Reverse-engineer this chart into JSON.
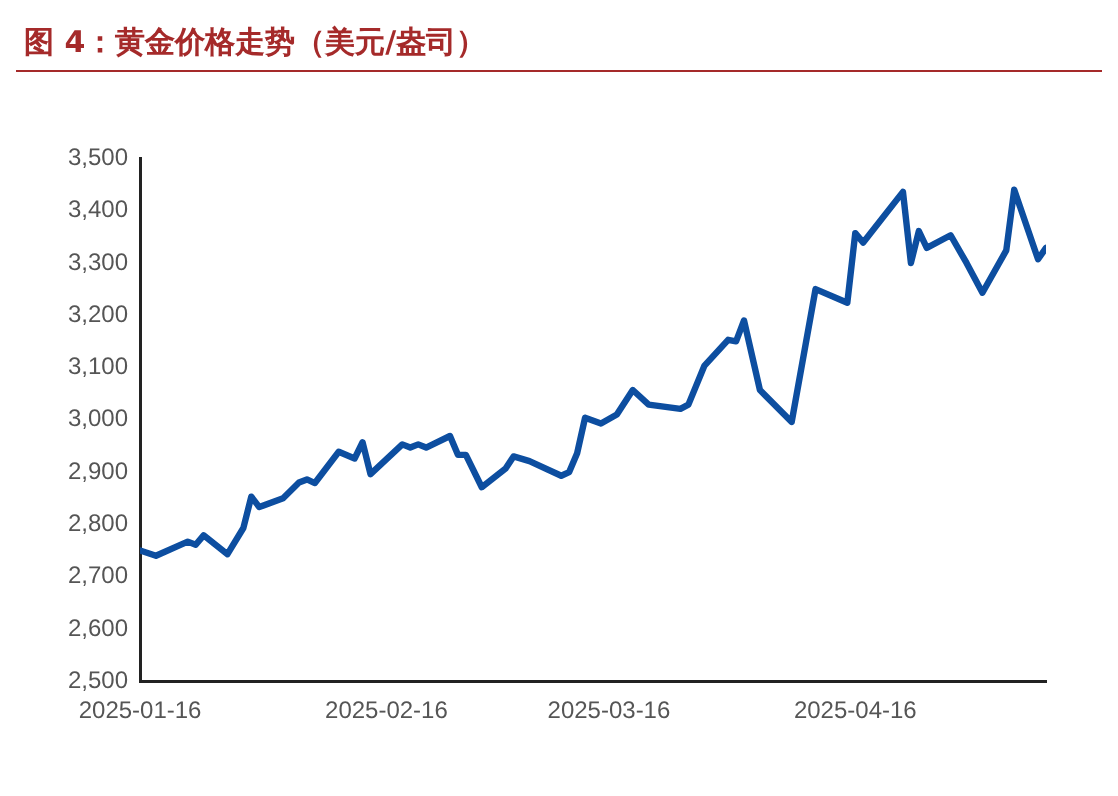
{
  "chart_data": {
    "type": "line",
    "title": "图 4：黄金价格走势（美元/盎司）",
    "x": [
      "2025-01-16",
      "2025-01-18",
      "2025-01-22",
      "2025-01-23",
      "2025-01-24",
      "2025-01-27",
      "2025-01-29",
      "2025-01-30",
      "2025-01-31",
      "2025-02-03",
      "2025-02-05",
      "2025-02-06",
      "2025-02-07",
      "2025-02-10",
      "2025-02-12",
      "2025-02-13",
      "2025-02-14",
      "2025-02-18",
      "2025-02-19",
      "2025-02-20",
      "2025-02-21",
      "2025-02-24",
      "2025-02-25",
      "2025-02-26",
      "2025-02-28",
      "2025-03-03",
      "2025-03-04",
      "2025-03-06",
      "2025-03-10",
      "2025-03-11",
      "2025-03-12",
      "2025-03-13",
      "2025-03-15",
      "2025-03-17",
      "2025-03-19",
      "2025-03-21",
      "2025-03-25",
      "2025-03-26",
      "2025-03-28",
      "2025-03-31",
      "2025-04-01",
      "2025-04-02",
      "2025-04-04",
      "2025-04-08",
      "2025-04-11",
      "2025-04-15",
      "2025-04-16",
      "2025-04-17",
      "2025-04-22",
      "2025-04-23",
      "2025-04-24",
      "2025-04-25",
      "2025-04-28",
      "2025-04-30",
      "2025-05-02",
      "2025-05-05",
      "2025-05-06",
      "2025-05-09",
      "2025-05-10"
    ],
    "series": [
      {
        "color": "#0d4ea0",
        "values": [
          2750,
          2740,
          2767,
          2761,
          2779,
          2743,
          2793,
          2853,
          2833,
          2850,
          2880,
          2886,
          2879,
          2939,
          2926,
          2957,
          2896,
          2953,
          2947,
          2953,
          2947,
          2969,
          2933,
          2933,
          2871,
          2907,
          2930,
          2921,
          2893,
          2900,
          2936,
          3004,
          2993,
          3010,
          3057,
          3029,
          3021,
          3029,
          3103,
          3153,
          3150,
          3190,
          3057,
          2996,
          3250,
          3224,
          3357,
          3339,
          3436,
          3300,
          3361,
          3329,
          3353,
          3300,
          3243,
          3324,
          3440,
          3307,
          3329
        ]
      }
    ],
    "xlim": [
      "2025-01-16",
      "2025-05-10"
    ],
    "xticks": [
      {
        "value": "2025-01-16",
        "label": "2025-01-16"
      },
      {
        "value": "2025-02-16",
        "label": "2025-02-16"
      },
      {
        "value": "2025-03-16",
        "label": "2025-03-16"
      },
      {
        "value": "2025-04-16",
        "label": "2025-04-16"
      }
    ],
    "ylim": [
      2500,
      3500
    ],
    "yticks": [
      {
        "value": 2500,
        "label": "2,500"
      },
      {
        "value": 2600,
        "label": "2,600"
      },
      {
        "value": 2700,
        "label": "2,700"
      },
      {
        "value": 2800,
        "label": "2,800"
      },
      {
        "value": 2900,
        "label": "2,900"
      },
      {
        "value": 3000,
        "label": "3,000"
      },
      {
        "value": 3100,
        "label": "3,100"
      },
      {
        "value": 3200,
        "label": "3,200"
      },
      {
        "value": 3300,
        "label": "3,300"
      },
      {
        "value": 3400,
        "label": "3,400"
      },
      {
        "value": 3500,
        "label": "3,500"
      }
    ],
    "grid": false,
    "legend": false,
    "marker": "none",
    "line_style": "solid"
  }
}
